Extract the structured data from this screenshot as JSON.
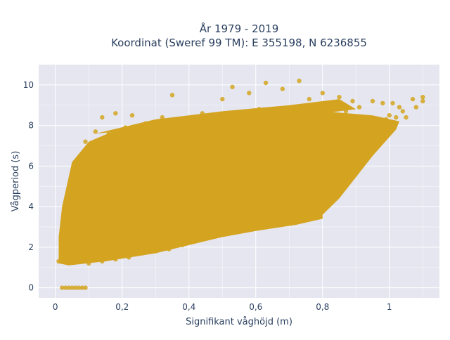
{
  "chart_data": {
    "type": "scatter",
    "title": "År 1979 - 2019",
    "subtitle": "Koordinat (Sweref 99 TM): E 355198, N 6236855",
    "xlabel": "Signifikant våghöjd (m)",
    "ylabel": "Vågperiod (s)",
    "xlim": [
      -0.05,
      1.15
    ],
    "ylim": [
      -0.5,
      11
    ],
    "x_ticks": [
      0,
      0.2,
      0.4,
      0.6,
      0.8,
      1
    ],
    "x_tick_labels": [
      "0",
      "0,2",
      "0,4",
      "0,6",
      "0,8",
      "1"
    ],
    "y_ticks": [
      0,
      2,
      4,
      6,
      8,
      10
    ],
    "y_tick_labels": [
      "0",
      "2",
      "4",
      "6",
      "8",
      "10"
    ],
    "grid": true,
    "legend": "none",
    "colors": {
      "marker": "#d4a420",
      "plot_bg": "#e5e6f0",
      "grid": "#ffffff",
      "text": "#2a3f5f"
    },
    "series": [
      {
        "marker_color": "#d4a420",
        "points": [
          [
            0.02,
            0
          ],
          [
            0.03,
            0
          ],
          [
            0.04,
            0
          ],
          [
            0.05,
            0
          ],
          [
            0.06,
            0
          ],
          [
            0.07,
            0
          ],
          [
            0.08,
            0
          ],
          [
            0.09,
            0
          ],
          [
            0.01,
            1.3
          ],
          [
            0.02,
            1.5
          ],
          [
            0.03,
            2.1
          ],
          [
            0.03,
            3.2
          ],
          [
            0.04,
            2.6
          ],
          [
            0.05,
            4.1
          ],
          [
            0.05,
            1.4
          ],
          [
            0.06,
            5.2
          ],
          [
            0.06,
            3.3
          ],
          [
            0.07,
            1.6
          ],
          [
            0.07,
            6.4
          ],
          [
            0.08,
            2.4
          ],
          [
            0.08,
            4.8
          ],
          [
            0.09,
            7.2
          ],
          [
            0.09,
            5.5
          ],
          [
            0.1,
            1.7
          ],
          [
            0.1,
            3.6
          ],
          [
            0.11,
            6.6
          ],
          [
            0.12,
            7.7
          ],
          [
            0.12,
            2.1
          ],
          [
            0.13,
            5.1
          ],
          [
            0.14,
            3.9
          ],
          [
            0.14,
            8.4
          ],
          [
            0.15,
            6.2
          ],
          [
            0.16,
            2.4
          ],
          [
            0.16,
            7.6
          ],
          [
            0.17,
            4.5
          ],
          [
            0.18,
            8.6
          ],
          [
            0.18,
            3.1
          ],
          [
            0.19,
            6.8
          ],
          [
            0.2,
            5.4
          ],
          [
            0.2,
            2.6
          ],
          [
            0.21,
            7.9
          ],
          [
            0.22,
            4.2
          ],
          [
            0.23,
            8.5
          ],
          [
            0.23,
            6.1
          ],
          [
            0.24,
            3.4
          ],
          [
            0.25,
            7.2
          ],
          [
            0.26,
            5.3
          ],
          [
            0.27,
            8.1
          ],
          [
            0.28,
            2.9
          ],
          [
            0.28,
            6.6
          ],
          [
            0.29,
            4.6
          ],
          [
            0.3,
            7.7
          ],
          [
            0.31,
            5.8
          ],
          [
            0.32,
            3.3
          ],
          [
            0.32,
            8.4
          ],
          [
            0.33,
            6.9
          ],
          [
            0.34,
            4.1
          ],
          [
            0.35,
            9.5
          ],
          [
            0.36,
            7.3
          ],
          [
            0.37,
            5.5
          ],
          [
            0.38,
            3.6
          ],
          [
            0.39,
            8.2
          ],
          [
            0.4,
            6.4
          ],
          [
            0.4,
            4.4
          ],
          [
            0.41,
            7.6
          ],
          [
            0.42,
            3.8
          ],
          [
            0.43,
            5.9
          ],
          [
            0.44,
            8.6
          ],
          [
            0.45,
            6.8
          ],
          [
            0.46,
            4.7
          ],
          [
            0.47,
            7.3
          ],
          [
            0.48,
            3.9
          ],
          [
            0.49,
            5.4
          ],
          [
            0.5,
            9.3
          ],
          [
            0.5,
            6.2
          ],
          [
            0.51,
            4.2
          ],
          [
            0.52,
            7.5
          ],
          [
            0.53,
            9.9
          ],
          [
            0.54,
            5.6
          ],
          [
            0.55,
            4.1
          ],
          [
            0.56,
            6.9
          ],
          [
            0.57,
            8.2
          ],
          [
            0.58,
            5.1
          ],
          [
            0.58,
            9.6
          ],
          [
            0.59,
            4.5
          ],
          [
            0.6,
            7.1
          ],
          [
            0.61,
            8.8
          ],
          [
            0.62,
            5.6
          ],
          [
            0.63,
            10.1
          ],
          [
            0.63,
            4.8
          ],
          [
            0.64,
            6.4
          ],
          [
            0.65,
            7.9
          ],
          [
            0.66,
            3.8
          ],
          [
            0.67,
            5.3
          ],
          [
            0.68,
            9.8
          ],
          [
            0.68,
            7.2
          ],
          [
            0.69,
            6.1
          ],
          [
            0.7,
            3.4
          ],
          [
            0.7,
            8.6
          ],
          [
            0.71,
            4.9
          ],
          [
            0.72,
            7.4
          ],
          [
            0.73,
            10.2
          ],
          [
            0.73,
            6.3
          ],
          [
            0.74,
            8.1
          ],
          [
            0.75,
            3.5
          ],
          [
            0.75,
            5.6
          ],
          [
            0.76,
            9.3
          ],
          [
            0.77,
            7.1
          ],
          [
            0.78,
            6.2
          ],
          [
            0.78,
            8.8
          ],
          [
            0.79,
            4.2
          ],
          [
            0.8,
            7.6
          ],
          [
            0.8,
            9.6
          ],
          [
            0.81,
            6.6
          ],
          [
            0.82,
            8.4
          ],
          [
            0.83,
            5.7
          ],
          [
            0.84,
            7.9
          ],
          [
            0.85,
            9.4
          ],
          [
            0.86,
            7.2
          ],
          [
            0.87,
            8.7
          ],
          [
            0.88,
            6.9
          ],
          [
            0.89,
            9.2
          ],
          [
            0.9,
            7.7
          ],
          [
            0.91,
            8.9
          ],
          [
            0.92,
            7.5
          ],
          [
            0.93,
            8.4
          ],
          [
            0.95,
            9.2
          ],
          [
            0.96,
            8.1
          ],
          [
            0.98,
            9.1
          ],
          [
            0.99,
            8.3
          ],
          [
            1.0,
            8.5
          ],
          [
            1.01,
            9.1
          ],
          [
            1.02,
            8.4
          ],
          [
            1.03,
            8.9
          ],
          [
            1.04,
            8.7
          ],
          [
            1.05,
            8.4
          ],
          [
            1.07,
            9.3
          ],
          [
            1.08,
            8.9
          ],
          [
            1.1,
            9.4
          ],
          [
            1.1,
            9.2
          ],
          [
            0.79,
            3.8
          ],
          [
            0.76,
            3.7
          ],
          [
            0.74,
            3.5
          ],
          [
            0.7,
            3.3
          ],
          [
            0.66,
            3.4
          ],
          [
            0.62,
            3.1
          ],
          [
            0.58,
            3.0
          ],
          [
            0.54,
            2.8
          ],
          [
            0.5,
            2.7
          ],
          [
            0.46,
            2.5
          ],
          [
            0.42,
            2.3
          ],
          [
            0.38,
            2.1
          ],
          [
            0.34,
            1.9
          ],
          [
            0.3,
            1.8
          ],
          [
            0.26,
            1.7
          ],
          [
            0.22,
            1.5
          ],
          [
            0.18,
            1.4
          ],
          [
            0.14,
            1.3
          ],
          [
            0.1,
            1.2
          ]
        ]
      }
    ]
  }
}
